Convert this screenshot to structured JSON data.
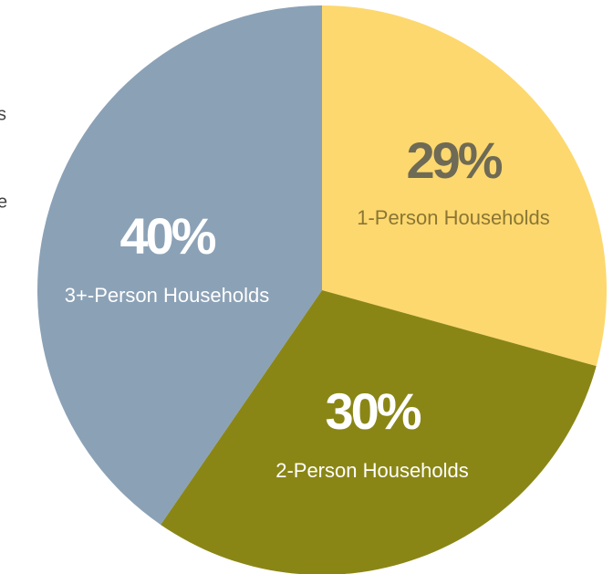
{
  "chart_data": {
    "type": "pie",
    "categories": [
      "1-Person Households",
      "2-Person Households",
      "3+-Person Households"
    ],
    "values": [
      29,
      30,
      40
    ],
    "value_labels": [
      "29%",
      "30%",
      "40%"
    ],
    "colors": [
      "#fdd86e",
      "#8a8616",
      "#8ba1b6"
    ],
    "label_colors": [
      "#6e6a55",
      "#ffffff",
      "#ffffff"
    ],
    "category_label_colors": [
      "#8a7635",
      "#ffffff",
      "#ffffff"
    ]
  },
  "cropped_text": [
    "s",
    "e"
  ]
}
